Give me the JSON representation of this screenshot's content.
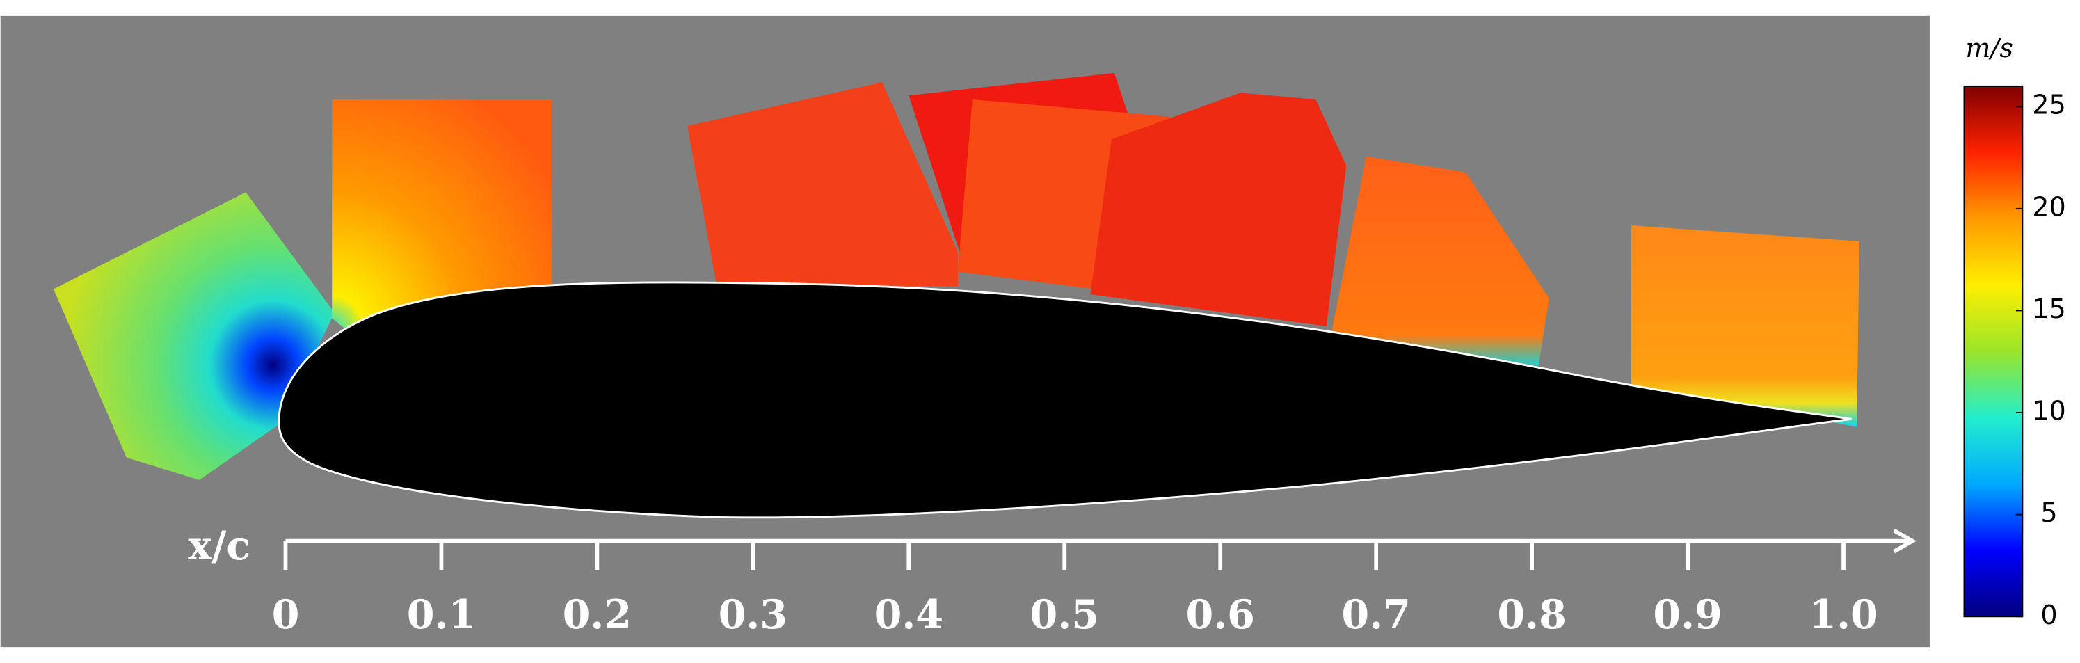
{
  "chart_data": {
    "type": "contour",
    "x_label": "x/c",
    "xlim": [
      0,
      1
    ],
    "xticks": [
      0,
      0.1,
      0.2,
      0.3,
      0.4,
      0.5,
      0.6,
      0.7,
      0.8,
      0.9,
      {
        "value": 1,
        "label": "1.0"
      }
    ],
    "colorbar_label": "m/s",
    "clim": [
      0,
      26
    ],
    "cticks": [
      0,
      5,
      10,
      15,
      20,
      25
    ],
    "colormap": [
      "#00007f",
      "#0000ff",
      "#00aaff",
      "#22eecc",
      "#9be52a",
      "#ffee00",
      "#ff9a00",
      "#ff2200",
      "#800000"
    ]
  }
}
